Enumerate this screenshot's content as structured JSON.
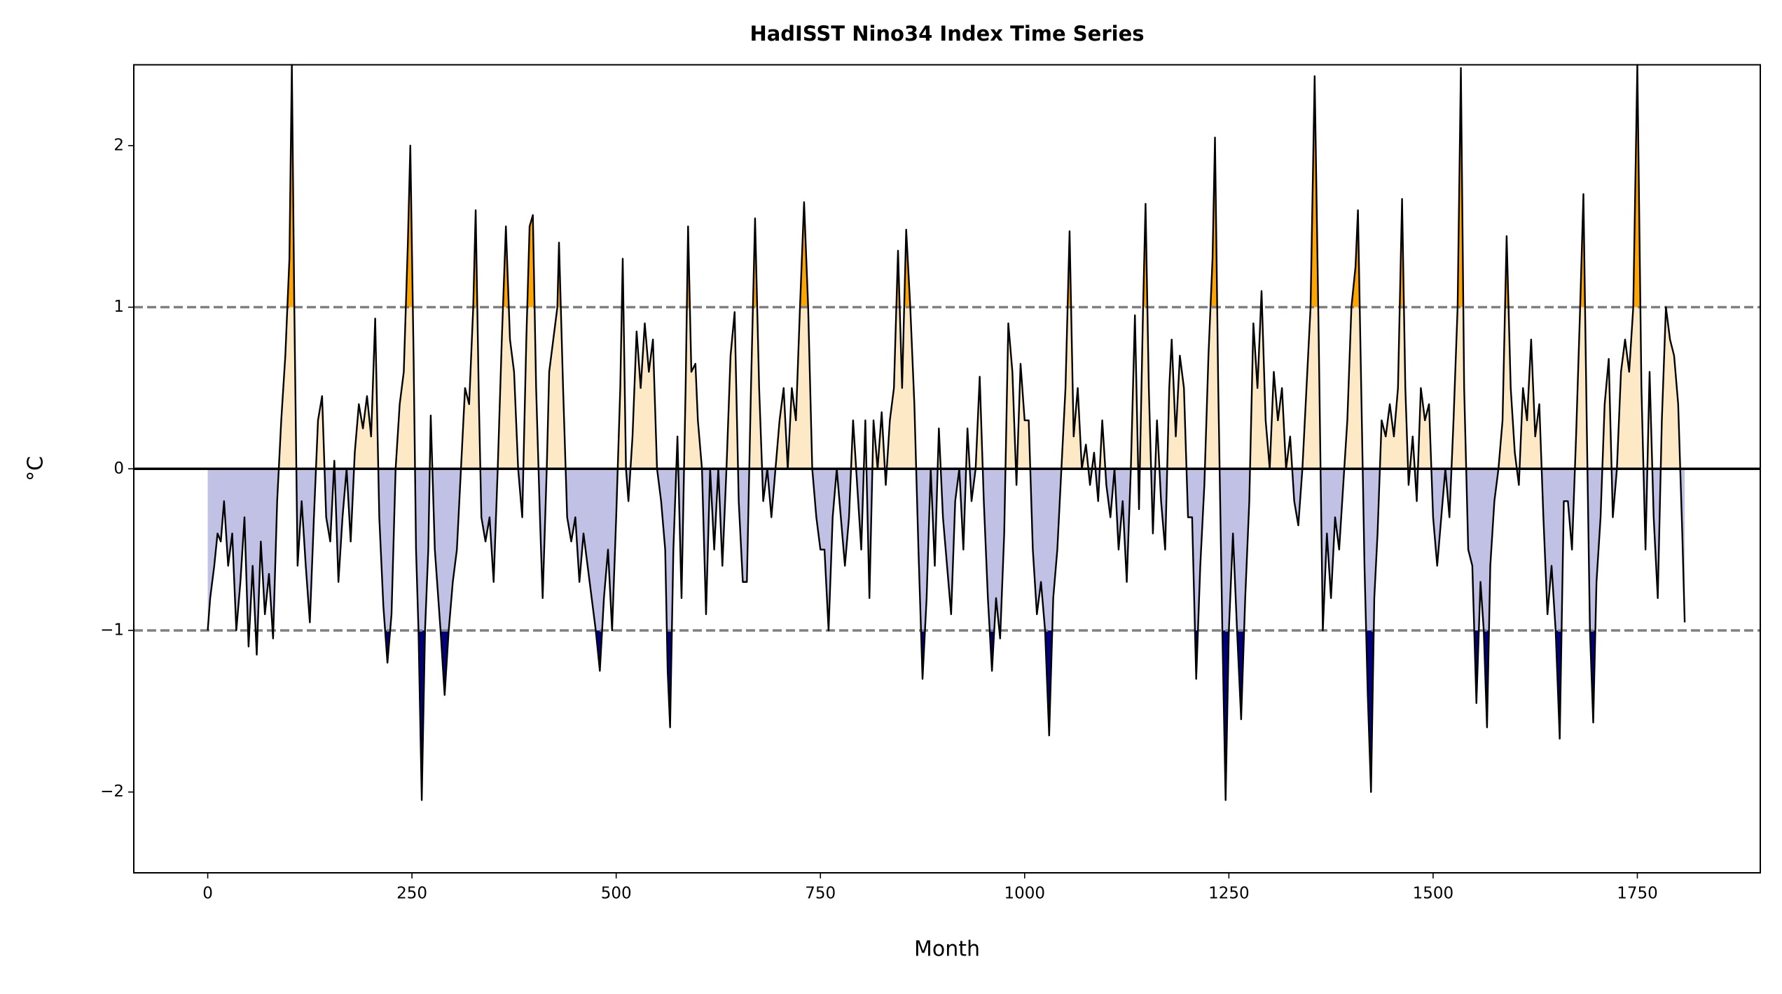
{
  "chart_data": {
    "type": "line",
    "title": "HadISST Nino34 Index Time Series",
    "xlabel": "Month",
    "ylabel": "°C",
    "xlim": [
      -90.5,
      1900.5
    ],
    "ylim": [
      -2.5,
      2.5
    ],
    "xticks": [
      0,
      250,
      500,
      750,
      1000,
      1250,
      1500,
      1750
    ],
    "yticks": [
      {
        "value": -2,
        "label": "−2"
      },
      {
        "value": -1,
        "label": "−1"
      },
      0,
      1,
      2
    ],
    "color": "#000000",
    "fill_colors": {
      "above_upper": "#ffa500",
      "above_zero": "#fde9c6",
      "below_zero": "#c0c1e4",
      "below_lower": "#000080"
    },
    "thresholds": [
      1,
      -1
    ],
    "reference_lines": [
      {
        "value": 1,
        "color": "#808080",
        "style": "dashed"
      },
      {
        "value": -1,
        "color": "#808080",
        "style": "dashed"
      },
      {
        "value": 0,
        "color": "#000000",
        "style": "solid"
      }
    ],
    "x": [
      0,
      3,
      8,
      12,
      16,
      20,
      25,
      30,
      35,
      40,
      45,
      50,
      55,
      60,
      65,
      70,
      75,
      80,
      85,
      90,
      95,
      100,
      103,
      106,
      110,
      115,
      120,
      125,
      130,
      135,
      140,
      145,
      150,
      155,
      160,
      165,
      170,
      175,
      180,
      185,
      190,
      195,
      200,
      205,
      210,
      215,
      220,
      225,
      230,
      235,
      240,
      245,
      248,
      252,
      255,
      258,
      262,
      266,
      270,
      273,
      278,
      285,
      290,
      295,
      300,
      305,
      310,
      315,
      320,
      325,
      328,
      332,
      335,
      340,
      345,
      350,
      355,
      360,
      365,
      370,
      375,
      380,
      385,
      390,
      394,
      398,
      402,
      407,
      410,
      415,
      418,
      423,
      428,
      430,
      435,
      440,
      445,
      450,
      455,
      460,
      465,
      470,
      475,
      480,
      485,
      490,
      495,
      500,
      505,
      508,
      512,
      515,
      520,
      525,
      530,
      535,
      540,
      545,
      550,
      555,
      560,
      563,
      566,
      570,
      575,
      580,
      585,
      588,
      592,
      597,
      600,
      605,
      610,
      615,
      620,
      625,
      630,
      635,
      640,
      645,
      650,
      655,
      660,
      665,
      670,
      675,
      680,
      685,
      690,
      695,
      700,
      705,
      710,
      715,
      720,
      725,
      730,
      735,
      740,
      745,
      750,
      755,
      760,
      765,
      770,
      775,
      780,
      785,
      790,
      795,
      800,
      805,
      810,
      815,
      820,
      825,
      830,
      835,
      840,
      845,
      850,
      855,
      860,
      865,
      870,
      875,
      880,
      885,
      890,
      895,
      900,
      905,
      910,
      915,
      920,
      925,
      930,
      935,
      940,
      945,
      950,
      955,
      960,
      965,
      970,
      975,
      980,
      985,
      990,
      995,
      1000,
      1005,
      1010,
      1015,
      1020,
      1025,
      1030,
      1035,
      1040,
      1045,
      1050,
      1055,
      1060,
      1065,
      1070,
      1075,
      1080,
      1085,
      1090,
      1095,
      1100,
      1105,
      1110,
      1115,
      1120,
      1125,
      1130,
      1135,
      1140,
      1145,
      1148,
      1152,
      1157,
      1162,
      1167,
      1172,
      1177,
      1180,
      1185,
      1190,
      1195,
      1200,
      1205,
      1210,
      1215,
      1220,
      1225,
      1230,
      1233,
      1237,
      1242,
      1246,
      1250,
      1255,
      1260,
      1265,
      1270,
      1275,
      1280,
      1285,
      1290,
      1295,
      1300,
      1305,
      1310,
      1315,
      1320,
      1325,
      1330,
      1335,
      1340,
      1345,
      1350,
      1355,
      1360,
      1365,
      1370,
      1375,
      1380,
      1385,
      1390,
      1395,
      1400,
      1405,
      1408,
      1412,
      1416,
      1420,
      1424,
      1428,
      1432,
      1437,
      1442,
      1447,
      1452,
      1457,
      1462,
      1466,
      1470,
      1475,
      1480,
      1485,
      1490,
      1495,
      1500,
      1505,
      1510,
      1515,
      1520,
      1525,
      1530,
      1534,
      1538,
      1543,
      1548,
      1553,
      1558,
      1562,
      1566,
      1570,
      1575,
      1580,
      1585,
      1590,
      1595,
      1600,
      1605,
      1610,
      1615,
      1620,
      1625,
      1630,
      1635,
      1640,
      1645,
      1650,
      1655,
      1660,
      1665,
      1670,
      1675,
      1680,
      1684,
      1688,
      1692,
      1696,
      1700,
      1705,
      1710,
      1715,
      1720,
      1725,
      1730,
      1735,
      1740,
      1745,
      1750,
      1755,
      1760,
      1765,
      1770,
      1775,
      1780,
      1785,
      1790,
      1795,
      1800,
      1805,
      1808
    ],
    "values": [
      -1.0,
      -0.8,
      -0.6,
      -0.4,
      -0.45,
      -0.2,
      -0.6,
      -0.4,
      -1.0,
      -0.7,
      -0.3,
      -1.1,
      -0.6,
      -1.15,
      -0.45,
      -0.9,
      -0.65,
      -1.05,
      -0.2,
      0.3,
      0.7,
      1.3,
      2.5,
      1.0,
      -0.6,
      -0.2,
      -0.6,
      -0.95,
      -0.3,
      0.3,
      0.45,
      -0.3,
      -0.45,
      0.05,
      -0.7,
      -0.3,
      0.0,
      -0.45,
      0.1,
      0.4,
      0.25,
      0.45,
      0.2,
      0.93,
      -0.3,
      -0.85,
      -1.2,
      -0.9,
      0.0,
      0.4,
      0.6,
      1.4,
      2.0,
      0.7,
      -0.5,
      -1.0,
      -2.05,
      -1.0,
      -0.5,
      0.33,
      -0.5,
      -1.0,
      -1.4,
      -1.0,
      -0.7,
      -0.5,
      0.0,
      0.5,
      0.4,
      1.0,
      1.6,
      0.4,
      -0.3,
      -0.45,
      -0.3,
      -0.7,
      0.0,
      0.8,
      1.5,
      0.8,
      0.6,
      0.0,
      -0.3,
      0.8,
      1.5,
      1.57,
      0.5,
      -0.35,
      -0.8,
      0.0,
      0.6,
      0.8,
      1.0,
      1.4,
      0.5,
      -0.3,
      -0.45,
      -0.3,
      -0.7,
      -0.4,
      -0.6,
      -0.8,
      -1.0,
      -1.25,
      -0.8,
      -0.5,
      -1.0,
      -0.3,
      0.5,
      1.3,
      0.0,
      -0.2,
      0.2,
      0.85,
      0.5,
      0.9,
      0.6,
      0.8,
      0.0,
      -0.2,
      -0.5,
      -1.25,
      -1.6,
      -0.5,
      0.2,
      -0.8,
      0.5,
      1.5,
      0.6,
      0.65,
      0.3,
      0.0,
      -0.9,
      0.0,
      -0.5,
      0.0,
      -0.6,
      0.0,
      0.7,
      0.97,
      -0.2,
      -0.7,
      -0.7,
      0.5,
      1.55,
      0.5,
      -0.2,
      0.0,
      -0.3,
      0.0,
      0.3,
      0.5,
      0.0,
      0.5,
      0.3,
      1.0,
      1.65,
      1.0,
      0.0,
      -0.3,
      -0.5,
      -0.5,
      -1.0,
      -0.3,
      0.0,
      -0.3,
      -0.6,
      -0.3,
      0.3,
      -0.1,
      -0.5,
      0.3,
      -0.8,
      0.3,
      0.0,
      0.35,
      -0.1,
      0.3,
      0.5,
      1.35,
      0.5,
      1.48,
      1.0,
      0.4,
      -0.5,
      -1.3,
      -0.8,
      0.0,
      -0.6,
      0.25,
      -0.3,
      -0.6,
      -0.9,
      -0.2,
      0.0,
      -0.5,
      0.25,
      -0.2,
      0.0,
      0.57,
      -0.2,
      -0.8,
      -1.25,
      -0.8,
      -1.05,
      -0.4,
      0.9,
      0.6,
      -0.1,
      0.65,
      0.3,
      0.3,
      -0.5,
      -0.9,
      -0.7,
      -1.0,
      -1.65,
      -0.8,
      -0.5,
      0.0,
      0.5,
      1.47,
      0.2,
      0.5,
      0.0,
      0.15,
      -0.1,
      0.1,
      -0.2,
      0.3,
      -0.1,
      -0.3,
      0.0,
      -0.5,
      -0.2,
      -0.7,
      0.0,
      0.95,
      -0.25,
      1.0,
      1.64,
      0.5,
      -0.4,
      0.3,
      -0.2,
      -0.5,
      0.5,
      0.8,
      0.2,
      0.7,
      0.5,
      -0.3,
      -0.3,
      -1.3,
      -0.6,
      -0.1,
      0.7,
      1.3,
      2.05,
      0.5,
      -1.0,
      -2.05,
      -1.0,
      -0.4,
      -1.0,
      -1.55,
      -0.8,
      -0.2,
      0.9,
      0.5,
      1.1,
      0.3,
      0.0,
      0.6,
      0.3,
      0.5,
      0.0,
      0.2,
      -0.2,
      -0.35,
      0.0,
      0.5,
      1.0,
      2.43,
      0.8,
      -1.0,
      -0.4,
      -0.8,
      -0.3,
      -0.5,
      -0.1,
      0.3,
      1.0,
      1.25,
      1.6,
      0.5,
      -0.6,
      -1.4,
      -2.0,
      -0.8,
      -0.4,
      0.3,
      0.2,
      0.4,
      0.2,
      0.5,
      1.67,
      0.5,
      -0.1,
      0.2,
      -0.2,
      0.5,
      0.3,
      0.4,
      -0.3,
      -0.6,
      -0.3,
      0.0,
      -0.3,
      0.3,
      1.0,
      2.48,
      0.5,
      -0.5,
      -0.6,
      -1.45,
      -0.7,
      -1.0,
      -1.6,
      -0.6,
      -0.2,
      0.0,
      0.3,
      1.44,
      0.5,
      0.1,
      -0.1,
      0.5,
      0.3,
      0.8,
      0.2,
      0.4,
      -0.3,
      -0.9,
      -0.6,
      -1.0,
      -1.67,
      -0.2,
      -0.2,
      -0.5,
      0.2,
      1.0,
      1.7,
      0.3,
      -1.0,
      -1.57,
      -0.7,
      -0.3,
      0.4,
      0.68,
      -0.3,
      0.0,
      0.6,
      0.8,
      0.6,
      1.0,
      2.5,
      0.5,
      -0.5,
      0.6,
      -0.3,
      -0.8,
      0.3,
      1.0,
      0.8,
      0.7,
      0.4,
      -0.4,
      -0.95
    ]
  }
}
